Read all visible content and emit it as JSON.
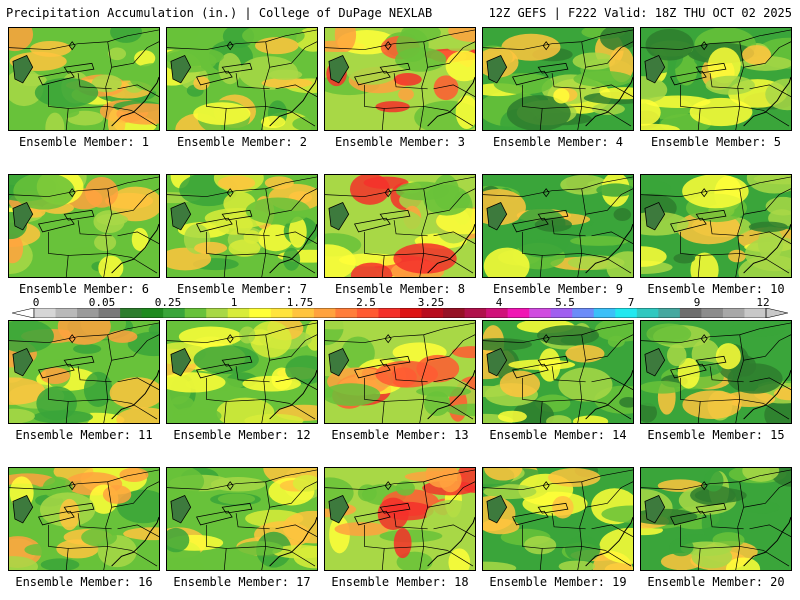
{
  "header": {
    "left_title": "Precipitation Accumulation (in.) | College of DuPage NEXLAB",
    "right_title": "12Z GEFS | F222 Valid: 18Z THU OCT 02 2025"
  },
  "colorbar": {
    "tick_labels": [
      "0",
      "0.05",
      "0.25",
      "1",
      "1.75",
      "2.5",
      "3.25",
      "4",
      "5.5",
      "7",
      "9",
      "12"
    ],
    "colors": [
      "#d6d6d6",
      "#b9b9b9",
      "#9a9a9a",
      "#7a7a7a",
      "#2e7d2e",
      "#1f8a1f",
      "#3aa53a",
      "#68c23a",
      "#a8d846",
      "#d8ec3a",
      "#ffff38",
      "#ffe43c",
      "#ffc43e",
      "#ffa23e",
      "#ff7d3a",
      "#ff5a32",
      "#f4302a",
      "#dd1414",
      "#b80d1e",
      "#961226",
      "#b0124c",
      "#d0127a",
      "#f016b4",
      "#d04ce0",
      "#a060f0",
      "#6c8cf8",
      "#3cc0f8",
      "#22e8f0",
      "#30c8c0",
      "#46a8a0",
      "#6e6e6e",
      "#8c8c8c",
      "#a8a8a8",
      "#c8c8c8"
    ]
  },
  "panels": [
    {
      "label": "Ensemble Member: 1"
    },
    {
      "label": "Ensemble Member: 2"
    },
    {
      "label": "Ensemble Member: 3"
    },
    {
      "label": "Ensemble Member: 4"
    },
    {
      "label": "Ensemble Member: 5"
    },
    {
      "label": "Ensemble Member: 6"
    },
    {
      "label": "Ensemble Member: 7"
    },
    {
      "label": "Ensemble Member: 8"
    },
    {
      "label": "Ensemble Member: 9"
    },
    {
      "label": "Ensemble Member: 10"
    },
    {
      "label": "Ensemble Member: 11"
    },
    {
      "label": "Ensemble Member: 12"
    },
    {
      "label": "Ensemble Member: 13"
    },
    {
      "label": "Ensemble Member: 14"
    },
    {
      "label": "Ensemble Member: 15"
    },
    {
      "label": "Ensemble Member: 16"
    },
    {
      "label": "Ensemble Member: 17"
    },
    {
      "label": "Ensemble Member: 18"
    },
    {
      "label": "Ensemble Member: 19"
    },
    {
      "label": "Ensemble Member: 20"
    }
  ]
}
